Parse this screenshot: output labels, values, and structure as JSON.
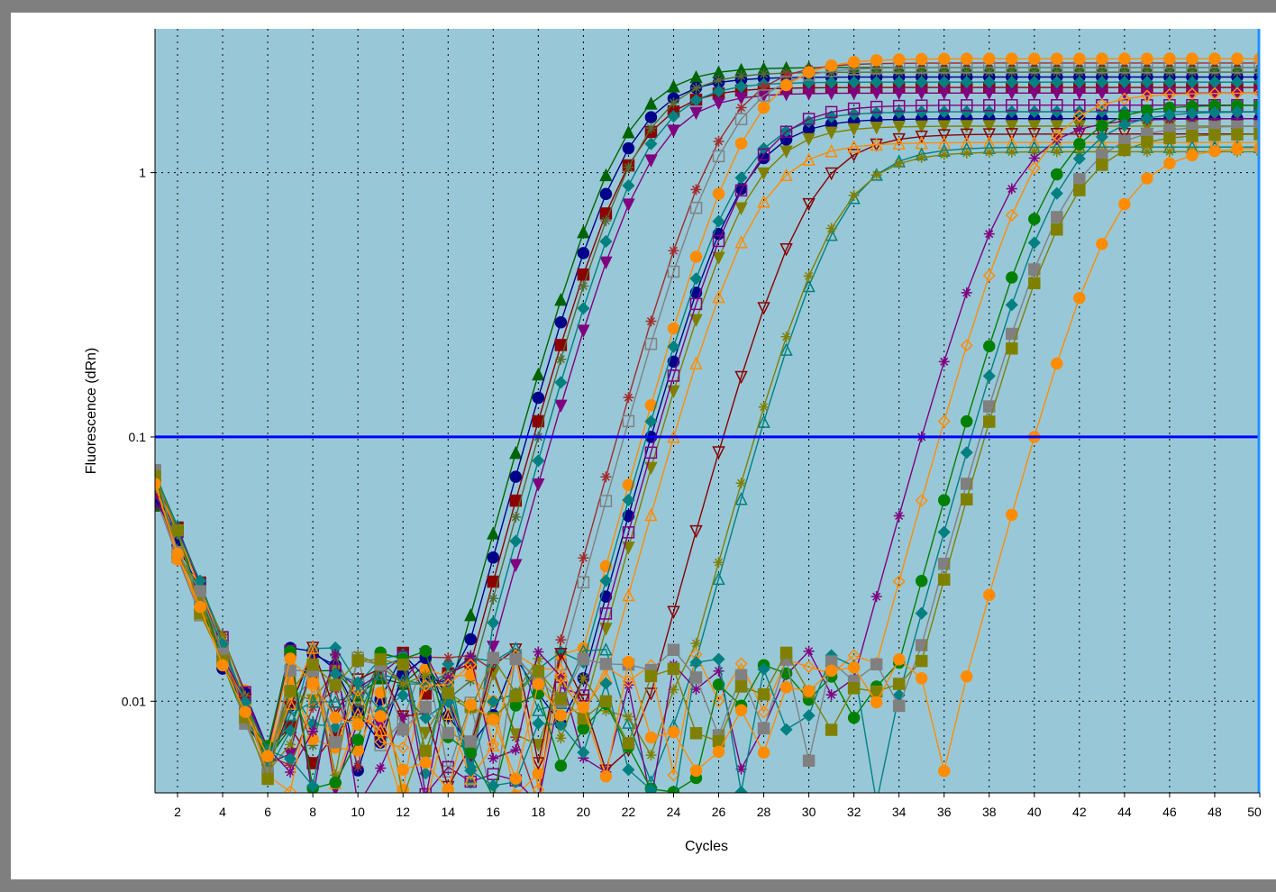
{
  "chart_data": {
    "type": "line",
    "title": "",
    "xlabel": "Cycles",
    "ylabel": "Fluorescence (dRn)",
    "y_scale": "log",
    "xlim": [
      1,
      50
    ],
    "ylim": [
      0.0045,
      3.5
    ],
    "x_ticks": [
      "2",
      "4",
      "6",
      "8",
      "10",
      "12",
      "14",
      "16",
      "18",
      "20",
      "22",
      "24",
      "26",
      "28",
      "30",
      "32",
      "34",
      "36",
      "38",
      "40",
      "42",
      "44",
      "46",
      "48",
      "50"
    ],
    "y_ticks": [
      "0.01",
      "0.1",
      "1"
    ],
    "threshold": 0.1,
    "threshold_color": "#0000ff",
    "plot_background": "#98c8d8",
    "grid": "dotted",
    "baseline_noise_cycles": [
      1,
      16
    ],
    "series": [
      {
        "color": "#006400",
        "marker": "triangle",
        "ct": 17.2,
        "plateau": 2.5
      },
      {
        "color": "#00008b",
        "marker": "circle",
        "ct": 17.5,
        "plateau": 2.3
      },
      {
        "color": "#8b0000",
        "marker": "square",
        "ct": 17.8,
        "plateau": 2.1
      },
      {
        "color": "#800080",
        "marker": "triangle-down",
        "ct": 18.6,
        "plateau": 2.0
      },
      {
        "color": "#556b2f",
        "marker": "star",
        "ct": 18.0,
        "plateau": 2.4
      },
      {
        "color": "#008080",
        "marker": "diamond",
        "ct": 18.3,
        "plateau": 2.2
      },
      {
        "color": "#a52a2a",
        "marker": "star",
        "ct": 21.5,
        "plateau": 2.6
      },
      {
        "color": "#808080",
        "marker": "square-open",
        "ct": 21.8,
        "plateau": 2.5
      },
      {
        "color": "#ff8c00",
        "marker": "circle",
        "ct": 22.6,
        "plateau": 2.7
      },
      {
        "color": "#00008b",
        "marker": "circle",
        "ct": 23.0,
        "plateau": 1.6
      },
      {
        "color": "#008080",
        "marker": "diamond",
        "ct": 22.8,
        "plateau": 1.7
      },
      {
        "color": "#808000",
        "marker": "triangle-down",
        "ct": 23.4,
        "plateau": 1.5
      },
      {
        "color": "#800080",
        "marker": "square-open",
        "ct": 23.2,
        "plateau": 1.8
      },
      {
        "color": "#8b0000",
        "marker": "triangle-down-open",
        "ct": 26.2,
        "plateau": 1.4
      },
      {
        "color": "#ff8c00",
        "marker": "triangle-open",
        "ct": 24.0,
        "plateau": 1.3
      },
      {
        "color": "#008080",
        "marker": "triangle-open",
        "ct": 27.8,
        "plateau": 1.25
      },
      {
        "color": "#808000",
        "marker": "star",
        "ct": 27.6,
        "plateau": 1.2
      },
      {
        "color": "#800080",
        "marker": "star",
        "ct": 35.0,
        "plateau": 1.6
      },
      {
        "color": "#ff8c00",
        "marker": "diamond-open",
        "ct": 35.8,
        "plateau": 2.0
      },
      {
        "color": "#008000",
        "marker": "circle",
        "ct": 36.8,
        "plateau": 1.8
      },
      {
        "color": "#008080",
        "marker": "diamond",
        "ct": 37.2,
        "plateau": 1.7
      },
      {
        "color": "#808080",
        "marker": "square",
        "ct": 37.6,
        "plateau": 1.5
      },
      {
        "color": "#808000",
        "marker": "square",
        "ct": 37.8,
        "plateau": 1.4
      },
      {
        "color": "#ff8c00",
        "marker": "circle",
        "ct": 40.0,
        "plateau": 1.25
      }
    ]
  }
}
